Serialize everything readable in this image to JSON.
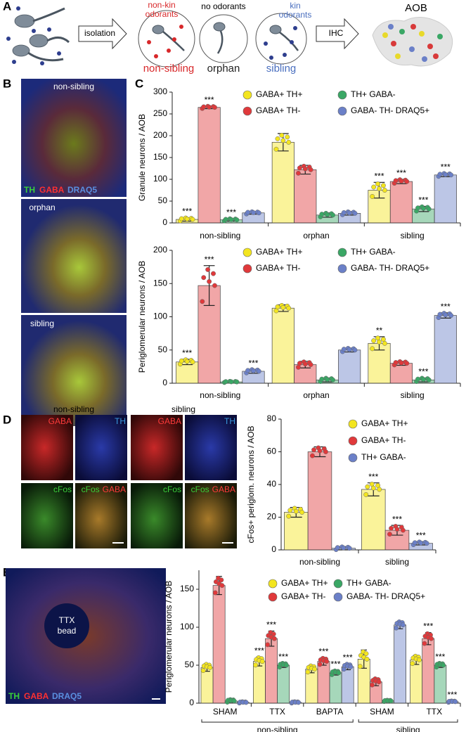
{
  "figure": {
    "panel_a": {
      "letter": "A",
      "non_kin": [
        "non-kin",
        "odorants"
      ],
      "no_odorants": "no odorants",
      "kin": [
        "kin",
        "odorants"
      ],
      "isolation": "isolation",
      "ihc": "IHC",
      "aob": "AOB",
      "groups": [
        "non-sibling",
        "orphan",
        "sibling"
      ]
    },
    "panel_b": {
      "letter": "B",
      "labels": [
        "non-sibling",
        "orphan",
        "sibling"
      ],
      "stain": [
        "TH",
        "GABA",
        "DRAQ5"
      ]
    },
    "panel_c": {
      "letter": "C"
    },
    "panel_d": {
      "letter": "D",
      "conditions": [
        "non-sibling",
        "sibling"
      ],
      "tiles": [
        [
          [
            "GABA"
          ],
          [
            "TH"
          ],
          [
            "cFos"
          ],
          [
            "cFos",
            "GABA"
          ]
        ],
        [
          [
            "GABA"
          ],
          [
            "TH"
          ],
          [
            "cFos"
          ],
          [
            "cFos",
            "GABA"
          ]
        ]
      ]
    },
    "panel_e": {
      "letter": "E",
      "bead": [
        "TTX",
        "bead"
      ],
      "stain": [
        "TH",
        "GABA",
        "DRAQ5"
      ]
    }
  },
  "chart_data": [
    {
      "type": "bar",
      "y_label": "Granule neurons / AOB",
      "categories": [
        "non-sibling",
        "orphan",
        "sibling"
      ],
      "ylim": [
        0,
        300
      ],
      "yticks": [
        0,
        50,
        100,
        150,
        200,
        250,
        300
      ],
      "series": [
        {
          "name": "GABA+ TH+",
          "color": "#f3e51f",
          "values": [
            8,
            185,
            75
          ],
          "errors": [
            4,
            20,
            18
          ],
          "significance": [
            "***",
            null,
            "***"
          ]
        },
        {
          "name": "GABA+ TH-",
          "color": "#e0393b",
          "values": [
            265,
            122,
            95
          ],
          "errors": [
            3,
            10,
            5
          ],
          "significance": [
            "***",
            null,
            "***"
          ]
        },
        {
          "name": "TH+ GABA-",
          "color": "#3aa765",
          "values": [
            7,
            18,
            32
          ],
          "errors": [
            3,
            5,
            6
          ],
          "significance": [
            "***",
            null,
            "***"
          ]
        },
        {
          "name": "GABA- TH- DRAQ5+",
          "color": "#6b80c8",
          "values": [
            23,
            22,
            110
          ],
          "errors": [
            3,
            4,
            4
          ],
          "significance": [
            null,
            null,
            "***"
          ]
        }
      ]
    },
    {
      "type": "bar",
      "y_label": "Periglomerular neurons / AOB",
      "categories": [
        "non-sibling",
        "orphan",
        "sibling"
      ],
      "ylim": [
        0,
        200
      ],
      "yticks": [
        0,
        50,
        100,
        150,
        200
      ],
      "series": [
        {
          "name": "GABA+ TH+",
          "color": "#f3e51f",
          "values": [
            32,
            113,
            60
          ],
          "errors": [
            4,
            5,
            10
          ],
          "significance": [
            "***",
            null,
            "**"
          ]
        },
        {
          "name": "GABA+ TH-",
          "color": "#e0393b",
          "values": [
            147,
            28,
            30
          ],
          "errors": [
            30,
            5,
            3
          ],
          "significance": [
            "***",
            null,
            null
          ]
        },
        {
          "name": "TH+ GABA-",
          "color": "#3aa765",
          "values": [
            2,
            5,
            5
          ],
          "errors": [
            1,
            3,
            3
          ],
          "significance": [
            null,
            null,
            "***"
          ]
        },
        {
          "name": "GABA- TH- DRAQ5+",
          "color": "#6b80c8",
          "values": [
            18,
            50,
            102
          ],
          "errors": [
            3,
            3,
            4
          ],
          "significance": [
            "***",
            null,
            "***"
          ]
        }
      ]
    },
    {
      "type": "bar",
      "y_label": "cFos+ periglom. neurons / AOB",
      "categories": [
        "non-sibling",
        "sibling"
      ],
      "ylim": [
        0,
        80
      ],
      "yticks": [
        0,
        20,
        40,
        60,
        80
      ],
      "series": [
        {
          "name": "GABA+ TH+",
          "color": "#f3e51f",
          "values": [
            23,
            37
          ],
          "errors": [
            3,
            4
          ],
          "significance": [
            null,
            "***"
          ]
        },
        {
          "name": "GABA+ TH-",
          "color": "#e0393b",
          "values": [
            60,
            12
          ],
          "errors": [
            3,
            3
          ],
          "significance": [
            null,
            "***"
          ]
        },
        {
          "name": "TH+ GABA-",
          "color": "#6b80c8",
          "values": [
            1,
            4
          ],
          "errors": [
            1,
            1
          ],
          "significance": [
            null,
            "***"
          ]
        }
      ]
    },
    {
      "type": "bar",
      "y_label": "Periglomerular neurons / AOB",
      "categories": [
        "SHAM",
        "TTX",
        "BAPTA",
        "SHAM",
        "TTX"
      ],
      "groups": [
        {
          "name": "non-sibling",
          "count": 3
        },
        {
          "name": "sibling",
          "count": 2
        }
      ],
      "ylim": [
        0,
        175
      ],
      "yticks": [
        0,
        50,
        100,
        150
      ],
      "series": [
        {
          "name": "GABA+ TH+",
          "color": "#f3e51f",
          "values": [
            47,
            55,
            45,
            58,
            57
          ],
          "errors": [
            5,
            6,
            5,
            12,
            6
          ],
          "significance": [
            null,
            "***",
            null,
            null,
            null
          ]
        },
        {
          "name": "GABA+ TH-",
          "color": "#e0393b",
          "values": [
            155,
            85,
            55,
            28,
            85
          ],
          "errors": [
            12,
            10,
            5,
            5,
            8
          ],
          "significance": [
            null,
            "***",
            "***",
            null,
            "***"
          ]
        },
        {
          "name": "TH+ GABA-",
          "color": "#3aa765",
          "values": [
            3,
            50,
            40,
            3,
            50
          ],
          "errors": [
            2,
            3,
            3,
            1,
            3
          ],
          "significance": [
            null,
            "***",
            "***",
            null,
            "***"
          ]
        },
        {
          "name": "GABA- TH- DRAQ5+",
          "color": "#6b80c8",
          "values": [
            1,
            1,
            48,
            103,
            2
          ],
          "errors": [
            1,
            1,
            4,
            5,
            1
          ],
          "significance": [
            null,
            null,
            "***",
            null,
            "***"
          ]
        }
      ]
    }
  ]
}
